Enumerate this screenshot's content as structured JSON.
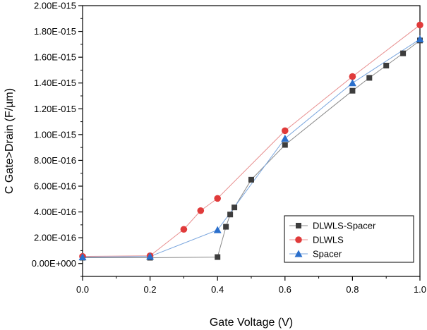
{
  "chart_data": {
    "type": "line",
    "title": "",
    "xlabel": "Gate Voltage (V)",
    "ylabel": "C Gate>Drain (F/µm)",
    "xlim": [
      0.0,
      1.0
    ],
    "ylim": [
      -1e-16,
      2e-15
    ],
    "x_ticks": [
      0.0,
      0.2,
      0.4,
      0.6,
      0.8,
      1.0
    ],
    "x_tick_labels": [
      "0.0",
      "0.2",
      "0.4",
      "0.6",
      "0.8",
      "1.0"
    ],
    "y_ticks": [
      0,
      2e-16,
      4e-16,
      6e-16,
      8e-16,
      1e-15,
      1.2e-15,
      1.4e-15,
      1.6e-15,
      1.8e-15,
      2e-15
    ],
    "y_tick_labels": [
      "0.00E+000",
      "2.00E-016",
      "4.00E-016",
      "6.00E-016",
      "8.00E-016",
      "1.00E-015",
      "1.20E-015",
      "1.40E-015",
      "1.60E-015",
      "1.80E-015",
      "2.00E-015"
    ],
    "legend_position": "bottom-right",
    "grid": false,
    "series": [
      {
        "name": "DLWLS-Spacer",
        "marker": "square",
        "color": "#3d3d3d",
        "line_color": "#8a8a8a",
        "x": [
          0.0,
          0.2,
          0.4,
          0.425,
          0.4375,
          0.45,
          0.5,
          0.6,
          0.8,
          0.85,
          0.9,
          0.95,
          1.0
        ],
        "y": [
          4.5e-17,
          4.5e-17,
          5e-17,
          2.85e-16,
          3.8e-16,
          4.35e-16,
          6.5e-16,
          9.2e-16,
          1.34e-15,
          1.44e-15,
          1.535e-15,
          1.63e-15,
          1.73e-15
        ]
      },
      {
        "name": "DLWLS",
        "marker": "circle",
        "color": "#e03a3a",
        "line_color": "#e89090",
        "x": [
          0.0,
          0.2,
          0.3,
          0.35,
          0.4,
          0.6,
          0.8,
          1.0
        ],
        "y": [
          5.5e-17,
          6e-17,
          2.65e-16,
          4.1e-16,
          5.05e-16,
          1.03e-15,
          1.45e-15,
          1.85e-15
        ]
      },
      {
        "name": "Spacer",
        "marker": "triangle",
        "color": "#2a6fcc",
        "line_color": "#7aa6de",
        "x": [
          0.0,
          0.2,
          0.4,
          0.6,
          0.8,
          1.0
        ],
        "y": [
          5e-17,
          5.5e-17,
          2.6e-16,
          9.7e-16,
          1.4e-15,
          1.74e-15
        ]
      }
    ]
  }
}
